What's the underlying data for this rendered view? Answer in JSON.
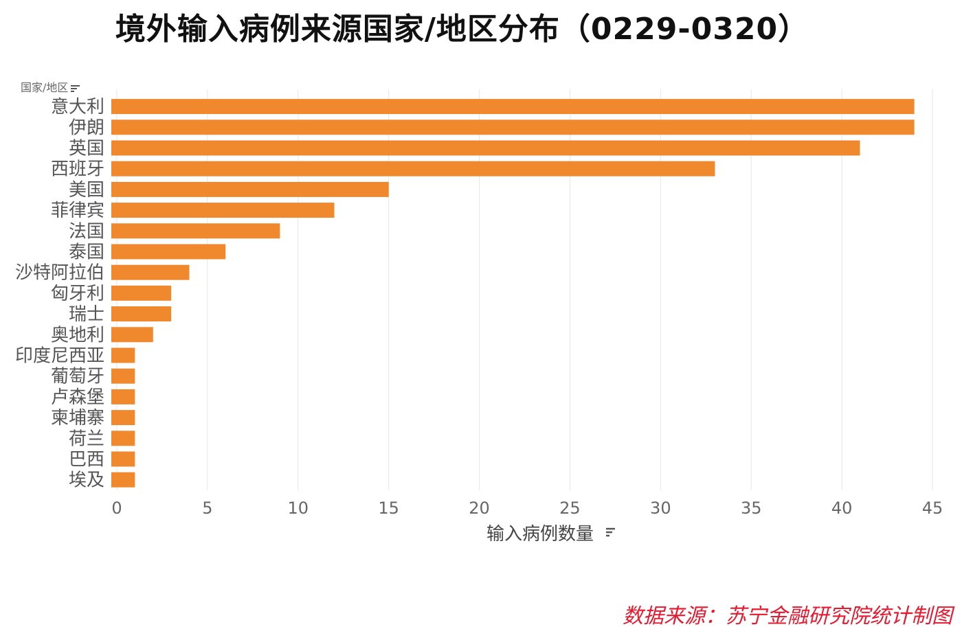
{
  "title": "境外输入病例来源国家/地区分布（0229-0320）",
  "source": "数据来源：苏宁金融研究院统计制图",
  "colors": {
    "bar": "#f0892d",
    "grid": "#e6e6e6",
    "tick_text": "#666666",
    "category_text": "#555555",
    "source": "#e8182f"
  },
  "chart_data": {
    "type": "bar",
    "orientation": "horizontal",
    "title": "境外输入病例来源国家/地区分布（0229-0320）",
    "ylabel": "国家/地区",
    "xlabel": "输入病例数量",
    "categories": [
      "意大利",
      "伊朗",
      "英国",
      "西班牙",
      "美国",
      "菲律宾",
      "法国",
      "泰国",
      "沙特阿拉伯",
      "匈牙利",
      "瑞士",
      "奥地利",
      "印度尼西亚",
      "葡萄牙",
      "卢森堡",
      "柬埔寨",
      "荷兰",
      "巴西",
      "埃及"
    ],
    "values": [
      44,
      44,
      41,
      33,
      15,
      12,
      9,
      6,
      4,
      3,
      3,
      2,
      1,
      1,
      1,
      1,
      1,
      1,
      1
    ],
    "xlim": [
      0,
      45
    ],
    "xticks": [
      0,
      5,
      10,
      15,
      20,
      25,
      30,
      35,
      40,
      45
    ],
    "grid": true,
    "legend": "none"
  }
}
